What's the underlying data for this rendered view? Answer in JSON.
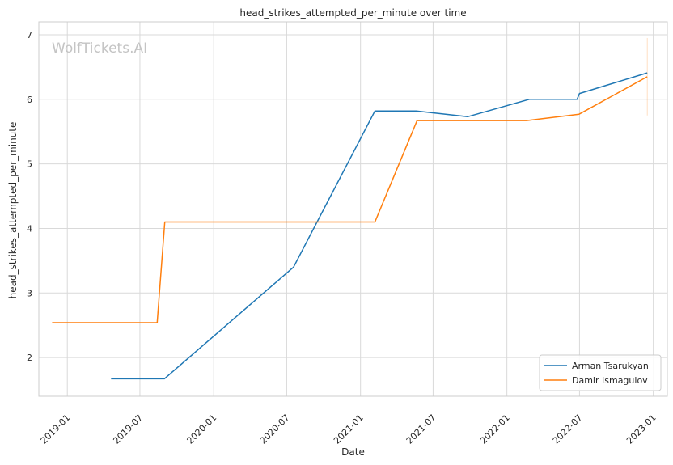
{
  "chart_data": {
    "type": "line",
    "title": "head_strikes_attempted_per_minute over time",
    "xlabel": "Date",
    "ylabel": "head_strikes_attempted_per_minute",
    "watermark": "WolfTickets.AI",
    "x_ticks": [
      "2019-01",
      "2019-07",
      "2020-01",
      "2020-07",
      "2021-01",
      "2021-07",
      "2022-01",
      "2022-07",
      "2023-01"
    ],
    "y_ticks": [
      2,
      3,
      4,
      5,
      6,
      7
    ],
    "xlim": [
      "2018-10-22",
      "2023-02-05"
    ],
    "ylim": [
      1.4,
      7.2
    ],
    "grid": true,
    "legend_position": "lower-right",
    "series": [
      {
        "name": "Arman Tsarukyan",
        "color": "#1f77b4",
        "points": [
          [
            "2019-04-20",
            1.67
          ],
          [
            "2019-08-31",
            1.67
          ],
          [
            "2020-07-18",
            3.4
          ],
          [
            "2021-02-06",
            5.82
          ],
          [
            "2021-05-20",
            5.82
          ],
          [
            "2021-09-25",
            5.73
          ],
          [
            "2022-02-26",
            6.0
          ],
          [
            "2022-06-25",
            6.0
          ],
          [
            "2022-07-01",
            6.09
          ],
          [
            "2022-12-17",
            6.41
          ]
        ]
      },
      {
        "name": "Damir Ismagulov",
        "color": "#ff7f0e",
        "points": [
          [
            "2018-11-24",
            2.54
          ],
          [
            "2019-08-13",
            2.54
          ],
          [
            "2019-09-01",
            4.1
          ],
          [
            "2021-02-06",
            4.1
          ],
          [
            "2021-05-22",
            5.67
          ],
          [
            "2022-02-19",
            5.67
          ],
          [
            "2022-06-30",
            5.77
          ],
          [
            "2022-12-17",
            6.35
          ]
        ]
      }
    ]
  }
}
